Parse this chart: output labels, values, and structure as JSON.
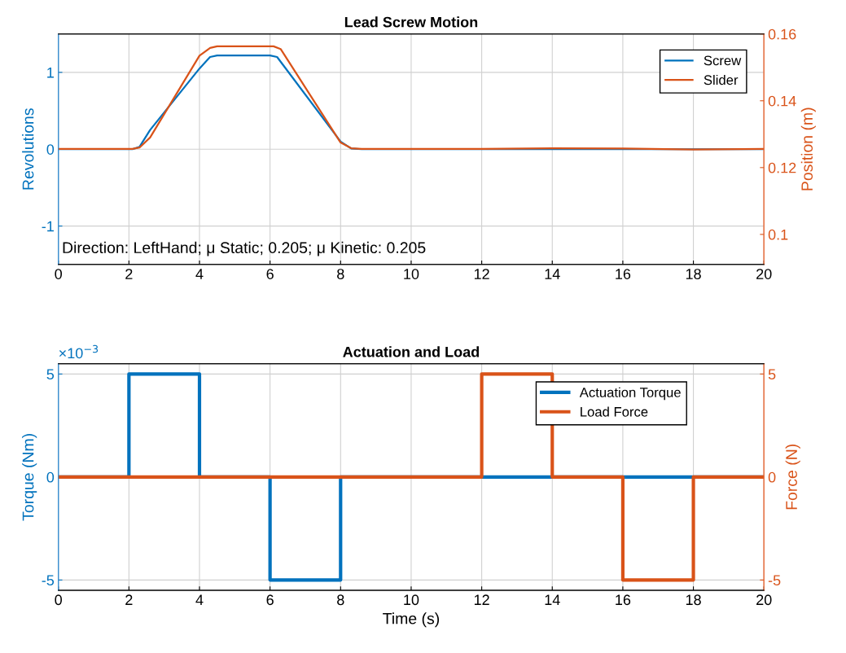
{
  "chart_data": [
    {
      "type": "line",
      "title": "Lead Screw Motion",
      "ylabel": "Revolutions",
      "y2label": "Position (m)",
      "annotations": [
        "Direction: LeftHand; μ Static; 0.205; μ Kinetic: 0.205"
      ],
      "series": [
        {
          "name": "Screw",
          "color": "#0072bd",
          "x": [
            0,
            2.1,
            2.3,
            2.6,
            4.0,
            4.3,
            4.5,
            6.0,
            6.2,
            8.0,
            8.3,
            8.6,
            20
          ],
          "values": [
            0,
            0,
            0.03,
            0.25,
            1.05,
            1.2,
            1.22,
            1.22,
            1.2,
            0.1,
            0.01,
            0,
            0
          ]
        },
        {
          "name": "Slider",
          "color": "#d95319",
          "axis": "y2",
          "x": [
            0,
            2.1,
            2.3,
            2.6,
            4.0,
            4.3,
            4.5,
            6.1,
            6.3,
            8.0,
            8.3,
            8.6,
            12,
            14,
            16,
            18,
            20
          ],
          "values": [
            0.1256,
            0.1256,
            0.126,
            0.129,
            0.1535,
            0.1558,
            0.1563,
            0.1563,
            0.1555,
            0.1275,
            0.1258,
            0.1256,
            0.1256,
            0.1258,
            0.1257,
            0.1254,
            0.1256
          ]
        }
      ],
      "xlim": [
        0,
        20
      ],
      "xticks": [
        0,
        2,
        4,
        6,
        8,
        10,
        12,
        14,
        16,
        18,
        20
      ],
      "ylim": [
        -1.5,
        1.5
      ],
      "yticks": [
        -1,
        0,
        1
      ],
      "y2lim": [
        0.091,
        0.16
      ],
      "y2ticks": [
        0.1,
        0.12,
        0.14,
        0.16
      ],
      "grid": true,
      "legend": "top right"
    },
    {
      "type": "step",
      "title": "Actuation and Load",
      "xlabel": "Time (s)",
      "ylabel": "Torque (Nm)",
      "y2label": "Force (N)",
      "annotations": [
        "×10$^{−3}$"
      ],
      "series": [
        {
          "name": "Actuation Torque",
          "color": "#0072bd",
          "x": [
            0,
            2,
            4,
            6,
            8,
            20
          ],
          "values": [
            0,
            5,
            0,
            -5,
            0,
            0
          ]
        },
        {
          "name": "Load Force",
          "color": "#d95319",
          "axis": "y2",
          "x": [
            0,
            12,
            14,
            16,
            18,
            20
          ],
          "values": [
            0,
            5,
            0,
            -5,
            0,
            0
          ]
        }
      ],
      "xlim": [
        0,
        20
      ],
      "xticks": [
        0,
        2,
        4,
        6,
        8,
        10,
        12,
        14,
        16,
        18,
        20
      ],
      "ylim": [
        -5.5,
        5.5
      ],
      "yticks": [
        -5,
        0,
        5
      ],
      "y2lim": [
        -5.5,
        5.5
      ],
      "y2ticks": [
        -5,
        0,
        5
      ],
      "grid": true,
      "legend": "top right"
    }
  ]
}
